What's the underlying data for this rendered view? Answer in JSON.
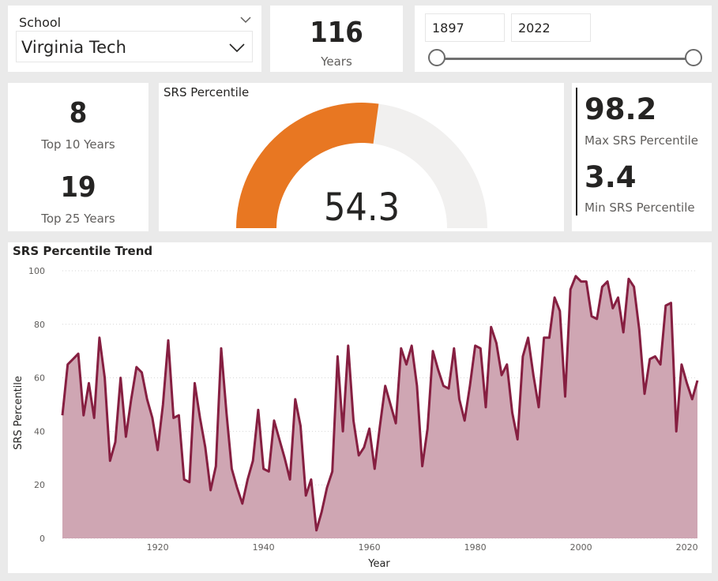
{
  "slicer": {
    "title": "School",
    "selected": "Virginia Tech"
  },
  "years_card": {
    "value": "116",
    "label": "Years"
  },
  "date_range": {
    "start": "1897",
    "end": "2022"
  },
  "top_card": {
    "top10_value": "8",
    "top10_label": "Top 10 Years",
    "top25_value": "19",
    "top25_label": "Top 25 Years"
  },
  "gauge": {
    "title": "SRS Percentile",
    "value": 54.3,
    "value_text": "54.3",
    "min": 0,
    "max": 100
  },
  "minmax_card": {
    "max_value": "98.2",
    "max_label": "Max SRS Percentile",
    "min_value": "3.4",
    "min_label": "Min SRS Percentile"
  },
  "colors": {
    "gauge_fill": "#e87722",
    "gauge_track": "#f1f0ef",
    "line": "#861f41",
    "area": "#cfa6b3"
  },
  "chart_data": {
    "type": "area",
    "title": "SRS Percentile Trend",
    "xlabel": "Year",
    "ylabel": "SRS Percentile",
    "xlim": [
      1902,
      2022
    ],
    "ylim": [
      0,
      100
    ],
    "xticks": [
      1920,
      1940,
      1960,
      1980,
      2000,
      2020
    ],
    "yticks": [
      0,
      20,
      40,
      60,
      80,
      100
    ],
    "grid": true,
    "series": [
      {
        "x": [
          1902,
          1903,
          1904,
          1905,
          1906,
          1907,
          1908,
          1909,
          1910,
          1911,
          1912,
          1913,
          1914,
          1915,
          1916,
          1917,
          1918,
          1919,
          1920,
          1921,
          1922,
          1923,
          1924,
          1925,
          1926,
          1927,
          1928,
          1929,
          1930,
          1931,
          1932,
          1933,
          1934,
          1935,
          1936,
          1937,
          1938,
          1939,
          1940,
          1941,
          1942,
          1943,
          1944,
          1945,
          1946,
          1947,
          1948,
          1949,
          1950,
          1951,
          1952,
          1953,
          1954,
          1955,
          1956,
          1957,
          1958,
          1959,
          1960,
          1961,
          1962,
          1963,
          1964,
          1965,
          1966,
          1967,
          1968,
          1969,
          1970,
          1971,
          1972,
          1973,
          1974,
          1975,
          1976,
          1977,
          1978,
          1979,
          1980,
          1981,
          1982,
          1983,
          1984,
          1985,
          1986,
          1987,
          1988,
          1989,
          1990,
          1991,
          1992,
          1993,
          1994,
          1995,
          1996,
          1997,
          1998,
          1999,
          2000,
          2001,
          2002,
          2003,
          2004,
          2005,
          2006,
          2007,
          2008,
          2009,
          2010,
          2011,
          2012,
          2013,
          2014,
          2015,
          2016,
          2017,
          2018,
          2019,
          2020,
          2021,
          2022
        ],
        "values": [
          46,
          65,
          67,
          69,
          46,
          58,
          45,
          75,
          60,
          29,
          36,
          60,
          38,
          52,
          64,
          62,
          52,
          45,
          33,
          50,
          74,
          45,
          46,
          22,
          21,
          58,
          45,
          34,
          18,
          27,
          71,
          47,
          26,
          19,
          13,
          22,
          29,
          48,
          26,
          25,
          44,
          37,
          30,
          22,
          52,
          42,
          16,
          22,
          3,
          10,
          19,
          25,
          68,
          40,
          72,
          44,
          31,
          34,
          41,
          26,
          42,
          57,
          50,
          43,
          71,
          65,
          72,
          57,
          27,
          41,
          70,
          63,
          57,
          56,
          71,
          52,
          44,
          57,
          72,
          71,
          49,
          79,
          73,
          61,
          65,
          47,
          37,
          68,
          75,
          61,
          49,
          75,
          75,
          90,
          85,
          53,
          93,
          98,
          96,
          96,
          83,
          82,
          94,
          96,
          86,
          90,
          77,
          97,
          94,
          78,
          54,
          67,
          68,
          65,
          87,
          88,
          40,
          65,
          58,
          52,
          59
        ]
      }
    ]
  }
}
